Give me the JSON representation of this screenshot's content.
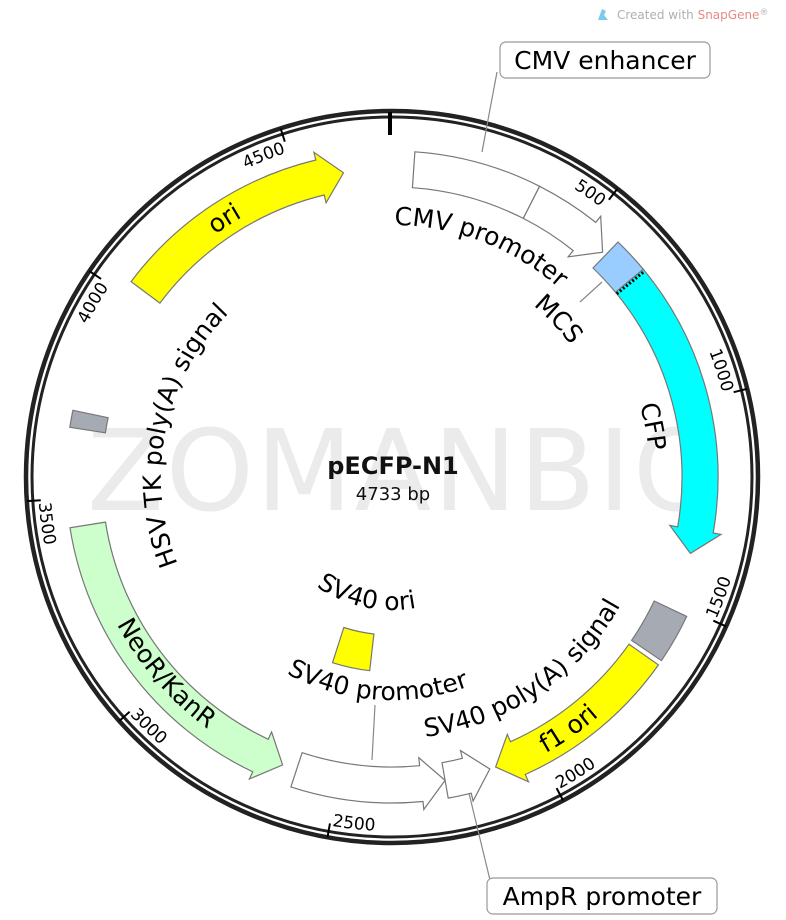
{
  "credit": {
    "prefix": "Created with ",
    "brand": "SnapGene",
    "suffix": "®",
    "icon": "snapgene-logo-icon",
    "brand_color": "#e58a84"
  },
  "watermark": "ZOMANBIO",
  "map": {
    "name": "pECFP-N1",
    "length_label": "4733 bp",
    "length_bp": 4733,
    "ticks": [
      "500",
      "1000",
      "1500",
      "2000",
      "2500",
      "3000",
      "3500",
      "4000",
      "4500"
    ],
    "features": [
      {
        "id": "cmv_enhancer",
        "label": "CMV enhancer",
        "start": 53,
        "end": 354,
        "direction": 0,
        "color": "#ffffff",
        "ring": "outer"
      },
      {
        "id": "cmv_promoter",
        "label": "CMV promoter",
        "start": 354,
        "end": 567,
        "direction": 1,
        "color": "#ffffff",
        "ring": "outer"
      },
      {
        "id": "mcs",
        "label": "MCS",
        "start": 577,
        "end": 663,
        "direction": 0,
        "color": "#99ccff",
        "ring": "outer"
      },
      {
        "id": "cfp",
        "label": "CFP",
        "start": 663,
        "end": 1372,
        "direction": 1,
        "color": "#00ffff",
        "ring": "outer"
      },
      {
        "id": "sv40_polya",
        "label": "SV40 poly(A) signal",
        "start": 1516,
        "end": 1634,
        "direction": 0,
        "color": "#a6abb3",
        "ring": "outer"
      },
      {
        "id": "f1_ori",
        "label": "f1 ori",
        "start": 1646,
        "end": 2108,
        "direction": 1,
        "color": "#ffff00",
        "ring": "outer"
      },
      {
        "id": "ampr_promoter",
        "label": "AmpR promoter",
        "start": 2123,
        "end": 2236,
        "direction": -1,
        "color": "#ffffff",
        "ring": "outer"
      },
      {
        "id": "sv40_promoter",
        "label": "SV40 promoter",
        "start": 2236,
        "end": 2604,
        "direction": -1,
        "color": "#ffffff",
        "ring": "outer"
      },
      {
        "id": "sv40_ori",
        "label": "SV40 ori",
        "start": 2453,
        "end": 2600,
        "direction": 0,
        "color": "#ffff00",
        "ring": "inner"
      },
      {
        "id": "neor_kanr",
        "label": "NeoR/KanR",
        "start": 2640,
        "end": 3432,
        "direction": -1,
        "color": "#ccffcc",
        "ring": "outer"
      },
      {
        "id": "hsv_tk_polya",
        "label": "HSV TK poly(A) signal",
        "start": 3665,
        "end": 3705,
        "direction": 0,
        "color": "#a6abb3",
        "ring": "outer"
      },
      {
        "id": "ori",
        "label": "ori",
        "start": 4034,
        "end": 4614,
        "direction": 1,
        "color": "#ffff00",
        "ring": "outer"
      }
    ]
  }
}
